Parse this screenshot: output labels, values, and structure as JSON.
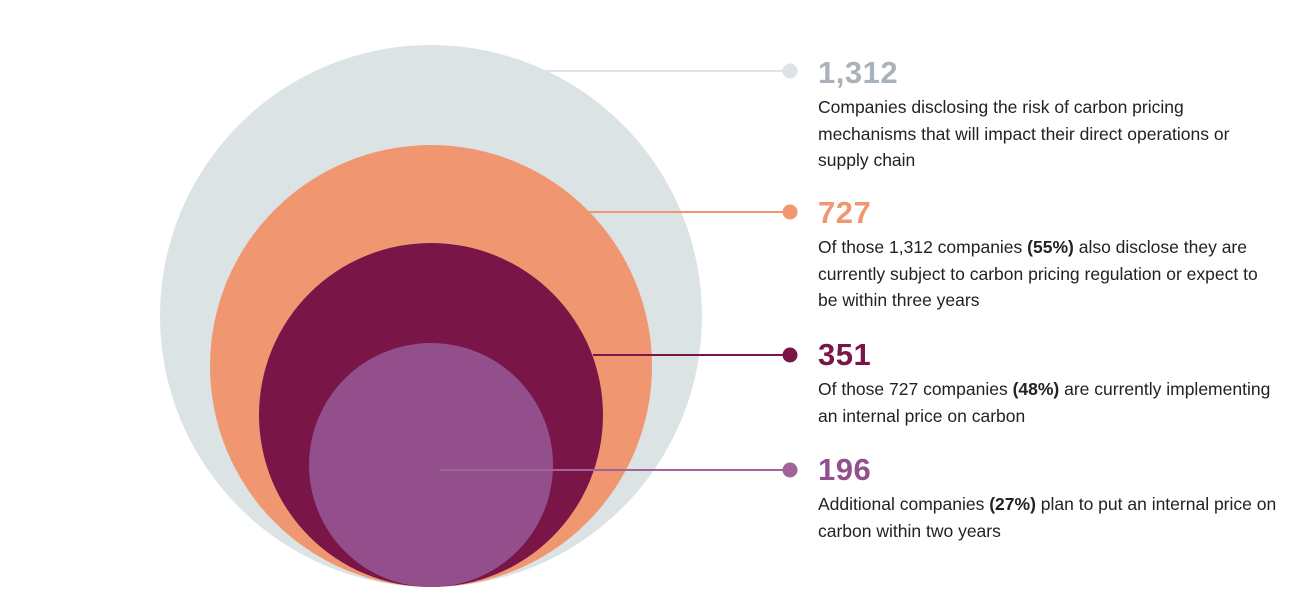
{
  "chart_data": {
    "type": "nested-circles",
    "series": [
      {
        "value": 1312,
        "label": "1,312",
        "color": "#dce3e4",
        "number_color": "#a9b2bb",
        "line_color": "#dce3e4",
        "description": [
          {
            "text": "Companies disclosing the risk of carbon pricing mechanisms that will impact their direct operations or supply chain",
            "bold": false
          }
        ]
      },
      {
        "value": 727,
        "label": "727",
        "color": "#f09772",
        "number_color": "#f09772",
        "line_color": "#f09772",
        "description": [
          {
            "text": "Of those 1,312 companies ",
            "bold": false
          },
          {
            "text": "(55%)",
            "bold": true
          },
          {
            "text": " also disclose they are currently subject to carbon pricing regulation or expect to be within three years",
            "bold": false
          }
        ]
      },
      {
        "value": 351,
        "label": "351",
        "color": "#7a1548",
        "number_color": "#7a1548",
        "line_color": "#7a1548",
        "description": [
          {
            "text": "Of those 727 companies ",
            "bold": false
          },
          {
            "text": "(48%)",
            "bold": true
          },
          {
            "text": " are currently implementing an internal price on carbon",
            "bold": false
          }
        ]
      },
      {
        "value": 196,
        "label": "196",
        "color": "#924f8c",
        "number_color": "#924f8c",
        "line_color": "#a0639a",
        "description": [
          {
            "text": "Additional companies ",
            "bold": false
          },
          {
            "text": "(27%)",
            "bold": true
          },
          {
            "text": " plan to put an internal price on carbon within two years",
            "bold": false
          }
        ]
      }
    ]
  }
}
